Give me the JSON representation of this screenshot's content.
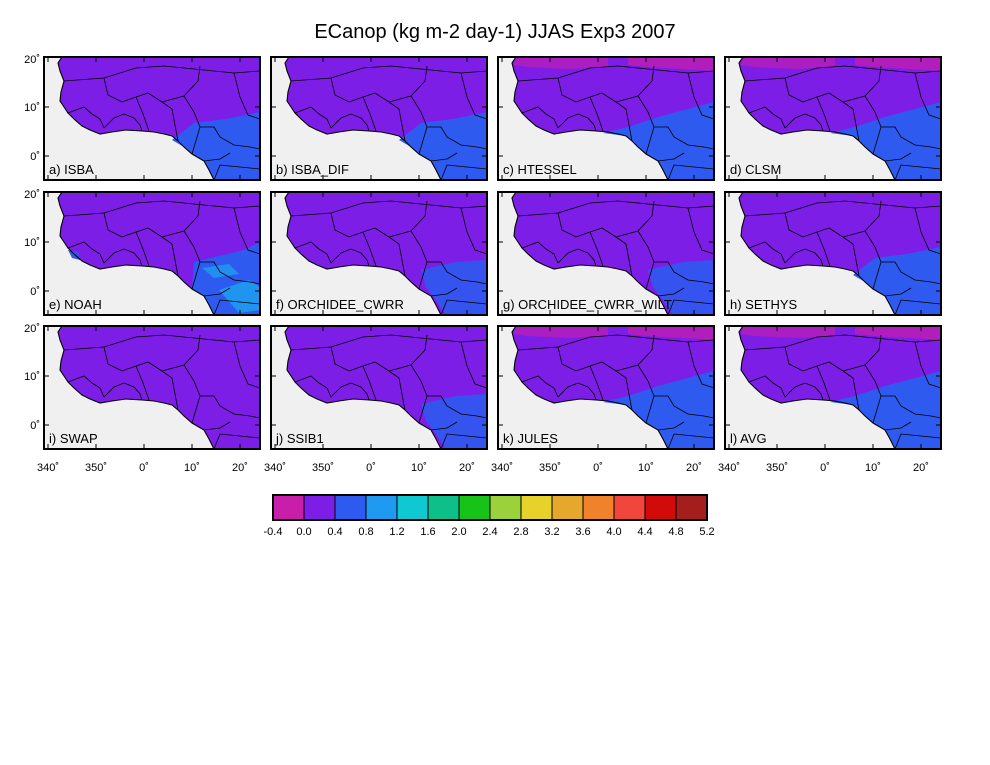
{
  "title": "ECanop (kg m-2 day-1) JJAS Exp3 2007",
  "panels": [
    {
      "label": "a) ISBA",
      "variant": "blue_sw"
    },
    {
      "label": "b) ISBA_DIF",
      "variant": "blue_sw"
    },
    {
      "label": "c) HTESSEL",
      "variant": "blue_sw_pink_n"
    },
    {
      "label": "d) CLSM",
      "variant": "blue_sw_pink_n"
    },
    {
      "label": "e) NOAH",
      "variant": "cyan_sw"
    },
    {
      "label": "f) ORCHIDEE_CWRR",
      "variant": "small_blue"
    },
    {
      "label": "g) ORCHIDEE_CWRR_WILT",
      "variant": "small_blue"
    },
    {
      "label": "h) SETHYS",
      "variant": "blue_sw"
    },
    {
      "label": "i) SWAP",
      "variant": "purple"
    },
    {
      "label": "j) SSIB1",
      "variant": "small_blue"
    },
    {
      "label": "k) JULES",
      "variant": "blue_sw_pink_n"
    },
    {
      "label": "l) AVG",
      "variant": "blue_sw_pink_n"
    }
  ],
  "lat_ticks": [
    "20˚",
    "10˚",
    "0˚"
  ],
  "lon_ticks": [
    "340˚",
    "350˚",
    "0˚",
    "10˚",
    "20˚"
  ],
  "colorbar": {
    "labels": [
      "-0.4",
      "0.0",
      "0.4",
      "0.8",
      "1.2",
      "1.6",
      "2.0",
      "2.4",
      "2.8",
      "3.2",
      "3.6",
      "4.0",
      "4.4",
      "4.8",
      "5.2"
    ],
    "colors": [
      "#c81eaa",
      "#7d1ee6",
      "#2e5af0",
      "#1e9bf0",
      "#10c8d2",
      "#0fbf8a",
      "#17c317",
      "#9bd23c",
      "#e6d22a",
      "#e6a82c",
      "#f0822c",
      "#f0463c",
      "#d20a0a",
      "#a51e1e"
    ]
  },
  "colors": {
    "land": "#7d1ee6",
    "ocean": "#f0f0f0",
    "frame": "#000000"
  }
}
